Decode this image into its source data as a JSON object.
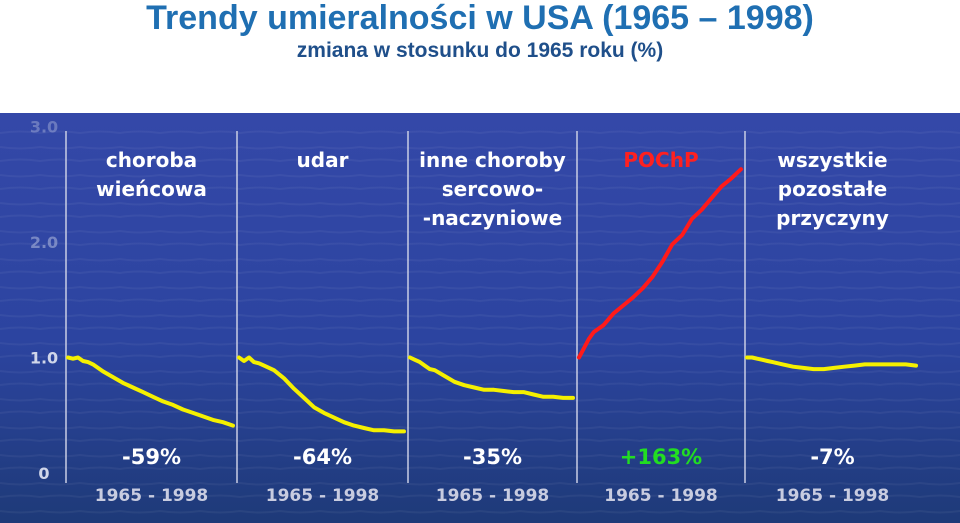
{
  "title": "Trendy umieralności w USA (1965 – 1998)",
  "subtitle": "zmiana w stosunku do 1965 roku (%)",
  "colors": {
    "background_top": "#3448a8",
    "background_bottom": "#1e3a78",
    "declining": "#f5f000",
    "copd": "#ff1a1a",
    "label": "#ffffff",
    "copd_label": "#ff2020",
    "increase_pct": "#22dd22"
  },
  "chart_data": {
    "type": "line",
    "title": "Trendy umieralności w USA (1965 – 1998)",
    "subtitle": "zmiana w stosunku do 1965 roku (%)",
    "y_tick_labels": [
      "0",
      "1.0",
      "2.0",
      "3.0"
    ],
    "ylim": [
      0,
      3.0
    ],
    "x_range_label": "1965  -  1998",
    "grid": false,
    "legend": "none",
    "panels": [
      {
        "label": [
          "choroba",
          "wieńcowa"
        ],
        "change": "-59%",
        "color": "declining",
        "x": [
          1965,
          1966,
          1967,
          1968,
          1969,
          1970,
          1972,
          1974,
          1976,
          1978,
          1980,
          1982,
          1984,
          1986,
          1988,
          1990,
          1992,
          1994,
          1996,
          1998
        ],
        "y": [
          1.0,
          0.99,
          1.0,
          0.97,
          0.96,
          0.94,
          0.88,
          0.83,
          0.78,
          0.74,
          0.7,
          0.66,
          0.62,
          0.59,
          0.55,
          0.52,
          0.49,
          0.46,
          0.44,
          0.41
        ]
      },
      {
        "label": [
          "udar"
        ],
        "change": "-64%",
        "color": "declining",
        "x": [
          1965,
          1966,
          1967,
          1968,
          1969,
          1970,
          1972,
          1974,
          1976,
          1978,
          1980,
          1982,
          1984,
          1986,
          1988,
          1990,
          1992,
          1994,
          1996,
          1998
        ],
        "y": [
          1.0,
          0.97,
          1.0,
          0.96,
          0.95,
          0.93,
          0.89,
          0.82,
          0.73,
          0.65,
          0.57,
          0.52,
          0.48,
          0.44,
          0.41,
          0.39,
          0.37,
          0.37,
          0.36,
          0.36
        ]
      },
      {
        "label": [
          "inne choroby",
          "sercowo-",
          "-naczyniowe"
        ],
        "change": "-35%",
        "color": "declining",
        "x": [
          1965,
          1966,
          1967,
          1968,
          1969,
          1970,
          1972,
          1974,
          1976,
          1978,
          1980,
          1982,
          1984,
          1986,
          1988,
          1990,
          1992,
          1994,
          1996,
          1998
        ],
        "y": [
          1.0,
          0.98,
          0.96,
          0.93,
          0.9,
          0.89,
          0.84,
          0.79,
          0.76,
          0.74,
          0.72,
          0.72,
          0.71,
          0.7,
          0.7,
          0.68,
          0.66,
          0.66,
          0.65,
          0.65
        ]
      },
      {
        "label": [
          "POChP"
        ],
        "change": "+163%",
        "color": "copd",
        "x": [
          1965,
          1966,
          1967,
          1968,
          1969,
          1970,
          1972,
          1974,
          1976,
          1978,
          1980,
          1982,
          1984,
          1986,
          1988,
          1990,
          1992,
          1994,
          1996,
          1998
        ],
        "y": [
          1.0,
          1.08,
          1.16,
          1.22,
          1.25,
          1.28,
          1.38,
          1.45,
          1.52,
          1.6,
          1.7,
          1.83,
          1.98,
          2.06,
          2.2,
          2.28,
          2.38,
          2.48,
          2.55,
          2.63
        ]
      },
      {
        "label": [
          "wszystkie",
          "pozostałe",
          "przyczyny"
        ],
        "change": "-7%",
        "color": "declining",
        "x": [
          1965,
          1966,
          1967,
          1968,
          1969,
          1970,
          1972,
          1974,
          1976,
          1978,
          1980,
          1982,
          1984,
          1986,
          1988,
          1990,
          1992,
          1994,
          1996,
          1998
        ],
        "y": [
          1.0,
          1.0,
          0.99,
          0.98,
          0.97,
          0.96,
          0.94,
          0.92,
          0.91,
          0.9,
          0.9,
          0.91,
          0.92,
          0.93,
          0.94,
          0.94,
          0.94,
          0.94,
          0.94,
          0.93
        ]
      }
    ]
  }
}
